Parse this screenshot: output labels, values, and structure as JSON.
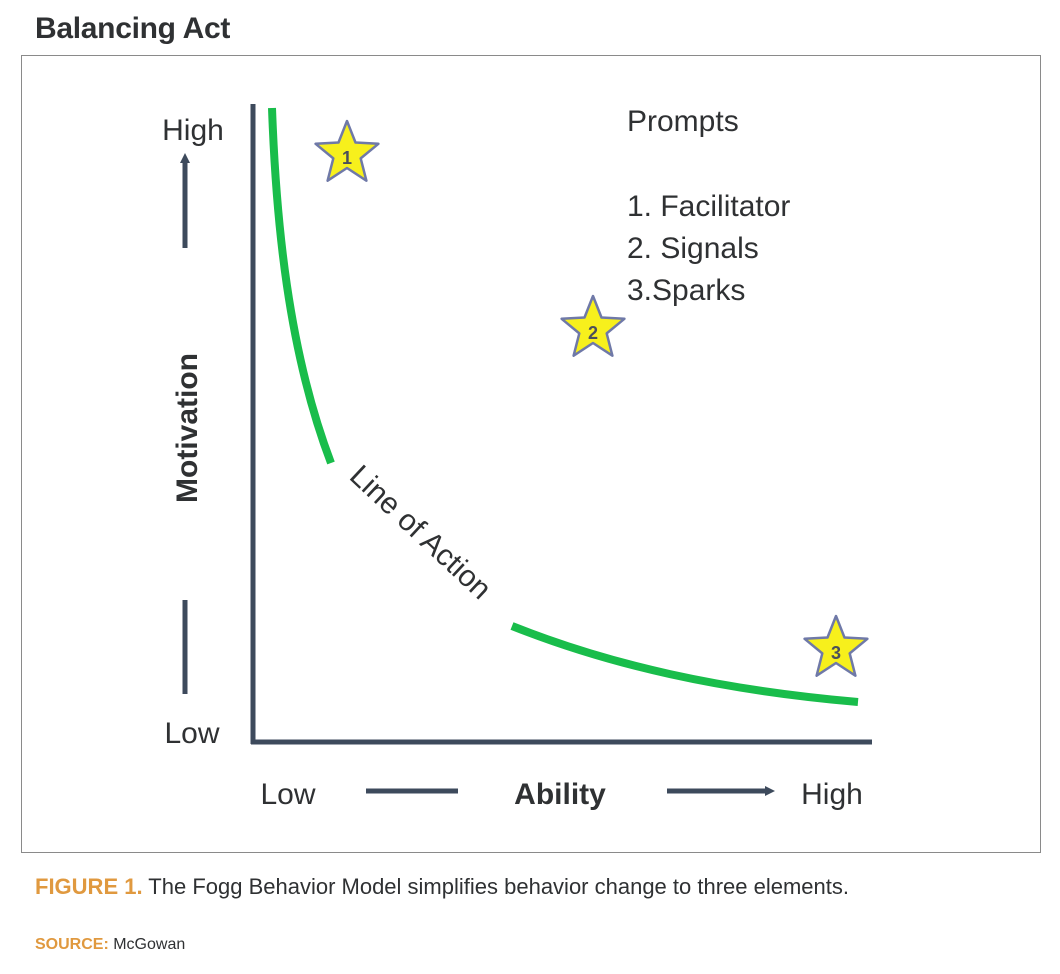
{
  "title": "Balancing Act",
  "diagram": {
    "y_axis": {
      "label": "Motivation",
      "high_label": "High",
      "low_label": "Low"
    },
    "x_axis": {
      "label": "Ability",
      "low_label": "Low",
      "high_label": "High"
    },
    "curve_label": "Line of Action",
    "prompts": {
      "heading": "Prompts",
      "items": [
        "1. Facilitator",
        "2. Signals",
        "3.Sparks"
      ]
    },
    "stars": [
      "1",
      "2",
      "3"
    ],
    "colors": {
      "axis": "#3d4a5c",
      "curve": "#19bd4b",
      "star_fill": "#f7f01c",
      "star_stroke": "#6f79a8",
      "text": "#2f3133"
    }
  },
  "caption": {
    "label": "FIGURE 1.",
    "text": " The Fogg Behavior Model simplifies behavior change to three elements."
  },
  "source": {
    "label": "SOURCE:",
    "text": " McGowan"
  }
}
